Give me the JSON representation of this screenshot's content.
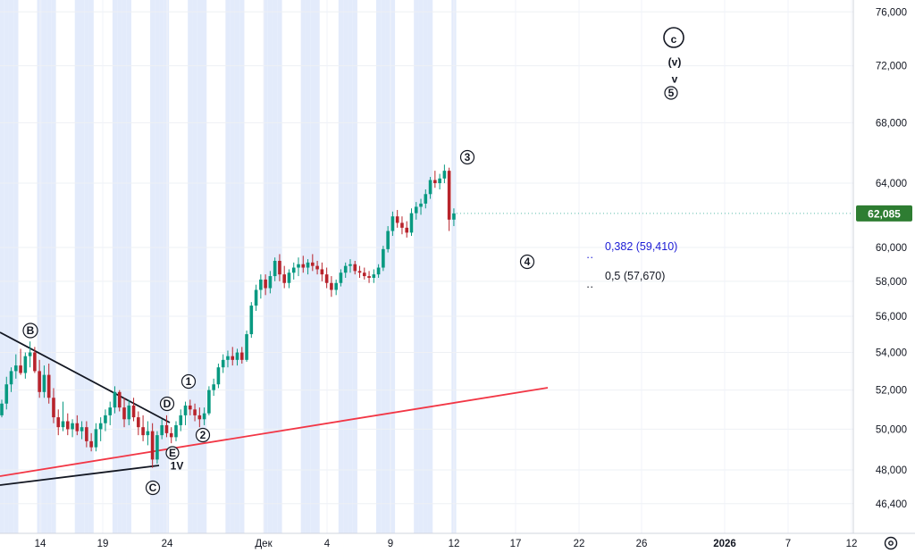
{
  "chart_data": {
    "type": "candlestick",
    "y_axis": {
      "ticks": [
        "46,400",
        "48,000",
        "50,000",
        "52,000",
        "54,000",
        "56,000",
        "58,000",
        "60,000",
        "64,000",
        "68,000",
        "72,000",
        "76,000"
      ],
      "tick_values": [
        46.4,
        48,
        50,
        52,
        54,
        56,
        58,
        60,
        64,
        68,
        72,
        76
      ],
      "scale": "log",
      "ylim": [
        45.5,
        77.5
      ]
    },
    "x_axis": {
      "ticks": [
        "14",
        "19",
        "24",
        "Дек",
        "4",
        "9",
        "12",
        "17",
        "22",
        "26",
        "2026",
        "7",
        "12"
      ],
      "bold_ticks": [
        "2026"
      ]
    },
    "last_price": {
      "value": 62.085,
      "label": "62,085",
      "color": "#2e7d32"
    },
    "colors": {
      "up": "#089981",
      "down": "#b8232b",
      "accent_blue": "#1c1cd6",
      "trendline": "#f23645",
      "shade": "#e3ebfb"
    },
    "candles": [
      [
        50.7,
        51.5,
        50.6,
        51.3
      ],
      [
        51.3,
        52.7,
        51.0,
        52.3
      ],
      [
        52.3,
        53.2,
        51.9,
        53.0
      ],
      [
        53.0,
        53.9,
        52.6,
        53.3
      ],
      [
        53.3,
        54.2,
        52.8,
        52.9
      ],
      [
        52.9,
        54.0,
        52.6,
        53.8
      ],
      [
        53.8,
        54.6,
        53.2,
        54.0
      ],
      [
        54.0,
        54.3,
        52.9,
        53.0
      ],
      [
        53.0,
        53.6,
        51.6,
        51.9
      ],
      [
        51.9,
        53.3,
        51.6,
        52.8
      ],
      [
        52.8,
        53.4,
        51.3,
        51.6
      ],
      [
        51.6,
        52.1,
        50.3,
        50.6
      ],
      [
        50.6,
        51.0,
        49.7,
        50.1
      ],
      [
        50.1,
        51.4,
        49.9,
        50.4
      ],
      [
        50.4,
        50.8,
        49.7,
        50.0
      ],
      [
        50.0,
        50.5,
        49.6,
        50.3
      ],
      [
        50.3,
        50.7,
        49.7,
        49.9
      ],
      [
        49.9,
        50.4,
        49.5,
        50.1
      ],
      [
        50.1,
        50.4,
        49.1,
        49.4
      ],
      [
        49.4,
        49.8,
        48.9,
        49.1
      ],
      [
        49.1,
        50.3,
        48.9,
        50.0
      ],
      [
        50.0,
        50.6,
        49.4,
        50.3
      ],
      [
        50.3,
        51.0,
        49.9,
        50.7
      ],
      [
        50.7,
        51.4,
        50.2,
        51.1
      ],
      [
        51.1,
        52.2,
        50.8,
        51.9
      ],
      [
        51.9,
        52.0,
        50.9,
        51.1
      ],
      [
        51.1,
        51.6,
        50.1,
        50.5
      ],
      [
        50.5,
        51.5,
        50.2,
        51.2
      ],
      [
        51.2,
        51.6,
        50.4,
        50.6
      ],
      [
        50.6,
        50.9,
        49.7,
        50.1
      ],
      [
        50.1,
        50.7,
        49.4,
        49.7
      ],
      [
        49.7,
        50.4,
        49.2,
        49.9
      ],
      [
        49.9,
        50.3,
        48.1,
        48.5
      ],
      [
        48.5,
        49.9,
        48.3,
        49.7
      ],
      [
        49.7,
        50.5,
        49.5,
        50.2
      ],
      [
        50.2,
        50.7,
        49.6,
        49.8
      ],
      [
        49.8,
        50.1,
        49.3,
        49.6
      ],
      [
        49.6,
        50.4,
        49.4,
        50.2
      ],
      [
        50.2,
        51.0,
        49.9,
        50.7
      ],
      [
        50.7,
        51.4,
        50.2,
        51.2
      ],
      [
        51.2,
        51.5,
        50.7,
        51.0
      ],
      [
        51.0,
        51.3,
        50.4,
        50.7
      ],
      [
        50.7,
        51.1,
        50.1,
        50.5
      ],
      [
        50.5,
        51.1,
        50.2,
        50.8
      ],
      [
        50.8,
        52.2,
        50.7,
        52.0
      ],
      [
        52.0,
        52.6,
        51.7,
        52.3
      ],
      [
        52.3,
        53.4,
        52.1,
        53.2
      ],
      [
        53.2,
        53.9,
        52.9,
        53.6
      ],
      [
        53.6,
        54.1,
        53.2,
        53.8
      ],
      [
        53.8,
        54.3,
        53.3,
        53.6
      ],
      [
        53.6,
        54.2,
        53.3,
        54.0
      ],
      [
        54.0,
        54.3,
        53.4,
        53.6
      ],
      [
        53.6,
        55.2,
        53.5,
        55.0
      ],
      [
        55.0,
        56.8,
        54.8,
        56.6
      ],
      [
        56.6,
        57.8,
        56.3,
        57.5
      ],
      [
        57.5,
        58.4,
        57.0,
        58.1
      ],
      [
        58.1,
        58.4,
        57.2,
        57.6
      ],
      [
        57.6,
        58.6,
        57.3,
        58.3
      ],
      [
        58.3,
        59.4,
        58.0,
        59.2
      ],
      [
        59.2,
        59.6,
        58.0,
        58.4
      ],
      [
        58.4,
        58.9,
        57.6,
        57.9
      ],
      [
        57.9,
        58.7,
        57.6,
        58.5
      ],
      [
        58.5,
        59.1,
        58.1,
        58.8
      ],
      [
        58.8,
        59.4,
        58.3,
        59.0
      ],
      [
        59.0,
        59.5,
        58.5,
        58.8
      ],
      [
        58.8,
        59.3,
        58.4,
        59.1
      ],
      [
        59.1,
        59.6,
        58.6,
        58.9
      ],
      [
        58.9,
        59.2,
        58.4,
        58.7
      ],
      [
        58.7,
        59.1,
        58.0,
        58.4
      ],
      [
        58.4,
        58.8,
        57.6,
        57.9
      ],
      [
        57.9,
        58.3,
        57.1,
        57.5
      ],
      [
        57.5,
        58.1,
        57.2,
        57.9
      ],
      [
        57.9,
        58.7,
        57.7,
        58.5
      ],
      [
        58.5,
        59.1,
        58.2,
        58.9
      ],
      [
        58.9,
        59.3,
        58.5,
        59.0
      ],
      [
        59.0,
        59.2,
        58.4,
        58.6
      ],
      [
        58.6,
        58.9,
        58.2,
        58.5
      ],
      [
        58.5,
        58.8,
        58.1,
        58.3
      ],
      [
        58.3,
        58.6,
        57.9,
        58.2
      ],
      [
        58.2,
        58.7,
        57.9,
        58.4
      ],
      [
        58.4,
        59.0,
        58.2,
        58.8
      ],
      [
        58.8,
        60.1,
        58.6,
        59.9
      ],
      [
        59.9,
        61.3,
        59.7,
        61.0
      ],
      [
        61.0,
        62.2,
        60.7,
        61.9
      ],
      [
        61.9,
        62.3,
        61.2,
        61.5
      ],
      [
        61.5,
        61.9,
        60.8,
        61.2
      ],
      [
        61.2,
        61.6,
        60.6,
        60.9
      ],
      [
        60.9,
        62.4,
        60.7,
        62.1
      ],
      [
        62.1,
        62.8,
        61.7,
        62.5
      ],
      [
        62.5,
        63.0,
        62.0,
        62.7
      ],
      [
        62.7,
        63.6,
        62.4,
        63.3
      ],
      [
        63.3,
        64.4,
        63.0,
        64.2
      ],
      [
        64.2,
        64.8,
        63.7,
        64.0
      ],
      [
        64.0,
        64.6,
        63.6,
        64.3
      ],
      [
        64.3,
        65.2,
        64.0,
        64.8
      ],
      [
        64.8,
        65.0,
        61.0,
        61.7
      ],
      [
        61.7,
        62.4,
        61.3,
        62.085
      ]
    ],
    "fib_levels": [
      {
        "label": "0,382 (59,410)",
        "value": 59.41,
        "color": "#1c1cd6"
      },
      {
        "label": "0,5 (57,670)",
        "value": 57.67,
        "color": "#131722"
      }
    ],
    "wave_labels": [
      {
        "text": "B",
        "circled": true
      },
      {
        "text": "D",
        "circled": true
      },
      {
        "text": "E",
        "circled": true
      },
      {
        "text": "C",
        "circled": true
      },
      {
        "text": "1V",
        "circled": false
      },
      {
        "text": "1",
        "circled": true
      },
      {
        "text": "2",
        "circled": true
      },
      {
        "text": "3",
        "circled": true
      },
      {
        "text": "4",
        "circled": true
      },
      {
        "text": "c",
        "circled": true
      },
      {
        "text": "(v)",
        "circled": false
      },
      {
        "text": "v",
        "circled": false
      },
      {
        "text": "5",
        "circled": true
      }
    ],
    "settings_icon": "gear-icon"
  }
}
